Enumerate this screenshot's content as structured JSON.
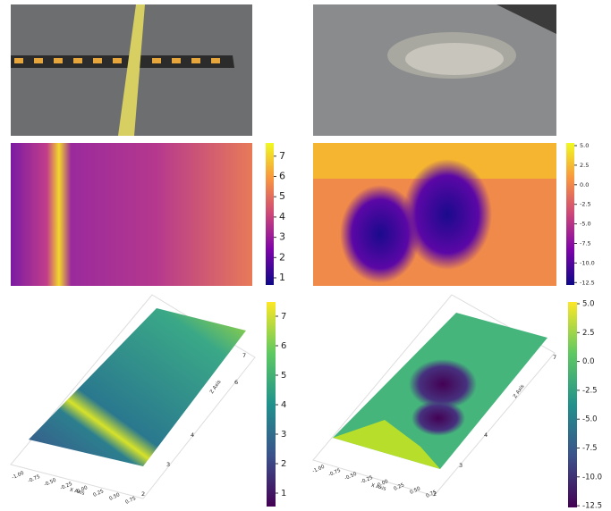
{
  "panels": {
    "left": {
      "heatmap_colorbar": [
        "1",
        "2",
        "3",
        "4",
        "5",
        "6",
        "7"
      ],
      "surface_colorbar": [
        "1",
        "2",
        "3",
        "4",
        "5",
        "6",
        "7"
      ],
      "x_axis_ticks": [
        "-1.00",
        "-0.75",
        "-0.50",
        "-0.25",
        "0.00",
        "0.25",
        "0.50",
        "0.75"
      ],
      "x_axis_label": "X Axis",
      "y_axis_ticks": [
        "2",
        "3",
        "4",
        "6",
        "7"
      ],
      "y_axis_label": "Z Axis"
    },
    "right": {
      "heatmap_colorbar": [
        "5.0",
        "2.5",
        "0.0",
        "-2.5",
        "-5.0",
        "-7.5",
        "-10.0",
        "-12.5"
      ],
      "surface_colorbar": [
        "5.0",
        "2.5",
        "0.0",
        "-2.5",
        "-5.0",
        "-7.5",
        "-10.0",
        "-12.5"
      ],
      "x_axis_ticks": [
        "-1.00",
        "-0.75",
        "-0.50",
        "-0.25",
        "0.00",
        "0.25",
        "0.50",
        "0.75"
      ],
      "x_axis_label": "X Axis",
      "y_axis_ticks": [
        "7",
        "4",
        "3",
        "2"
      ],
      "y_axis_label": "Z Axis"
    }
  }
}
